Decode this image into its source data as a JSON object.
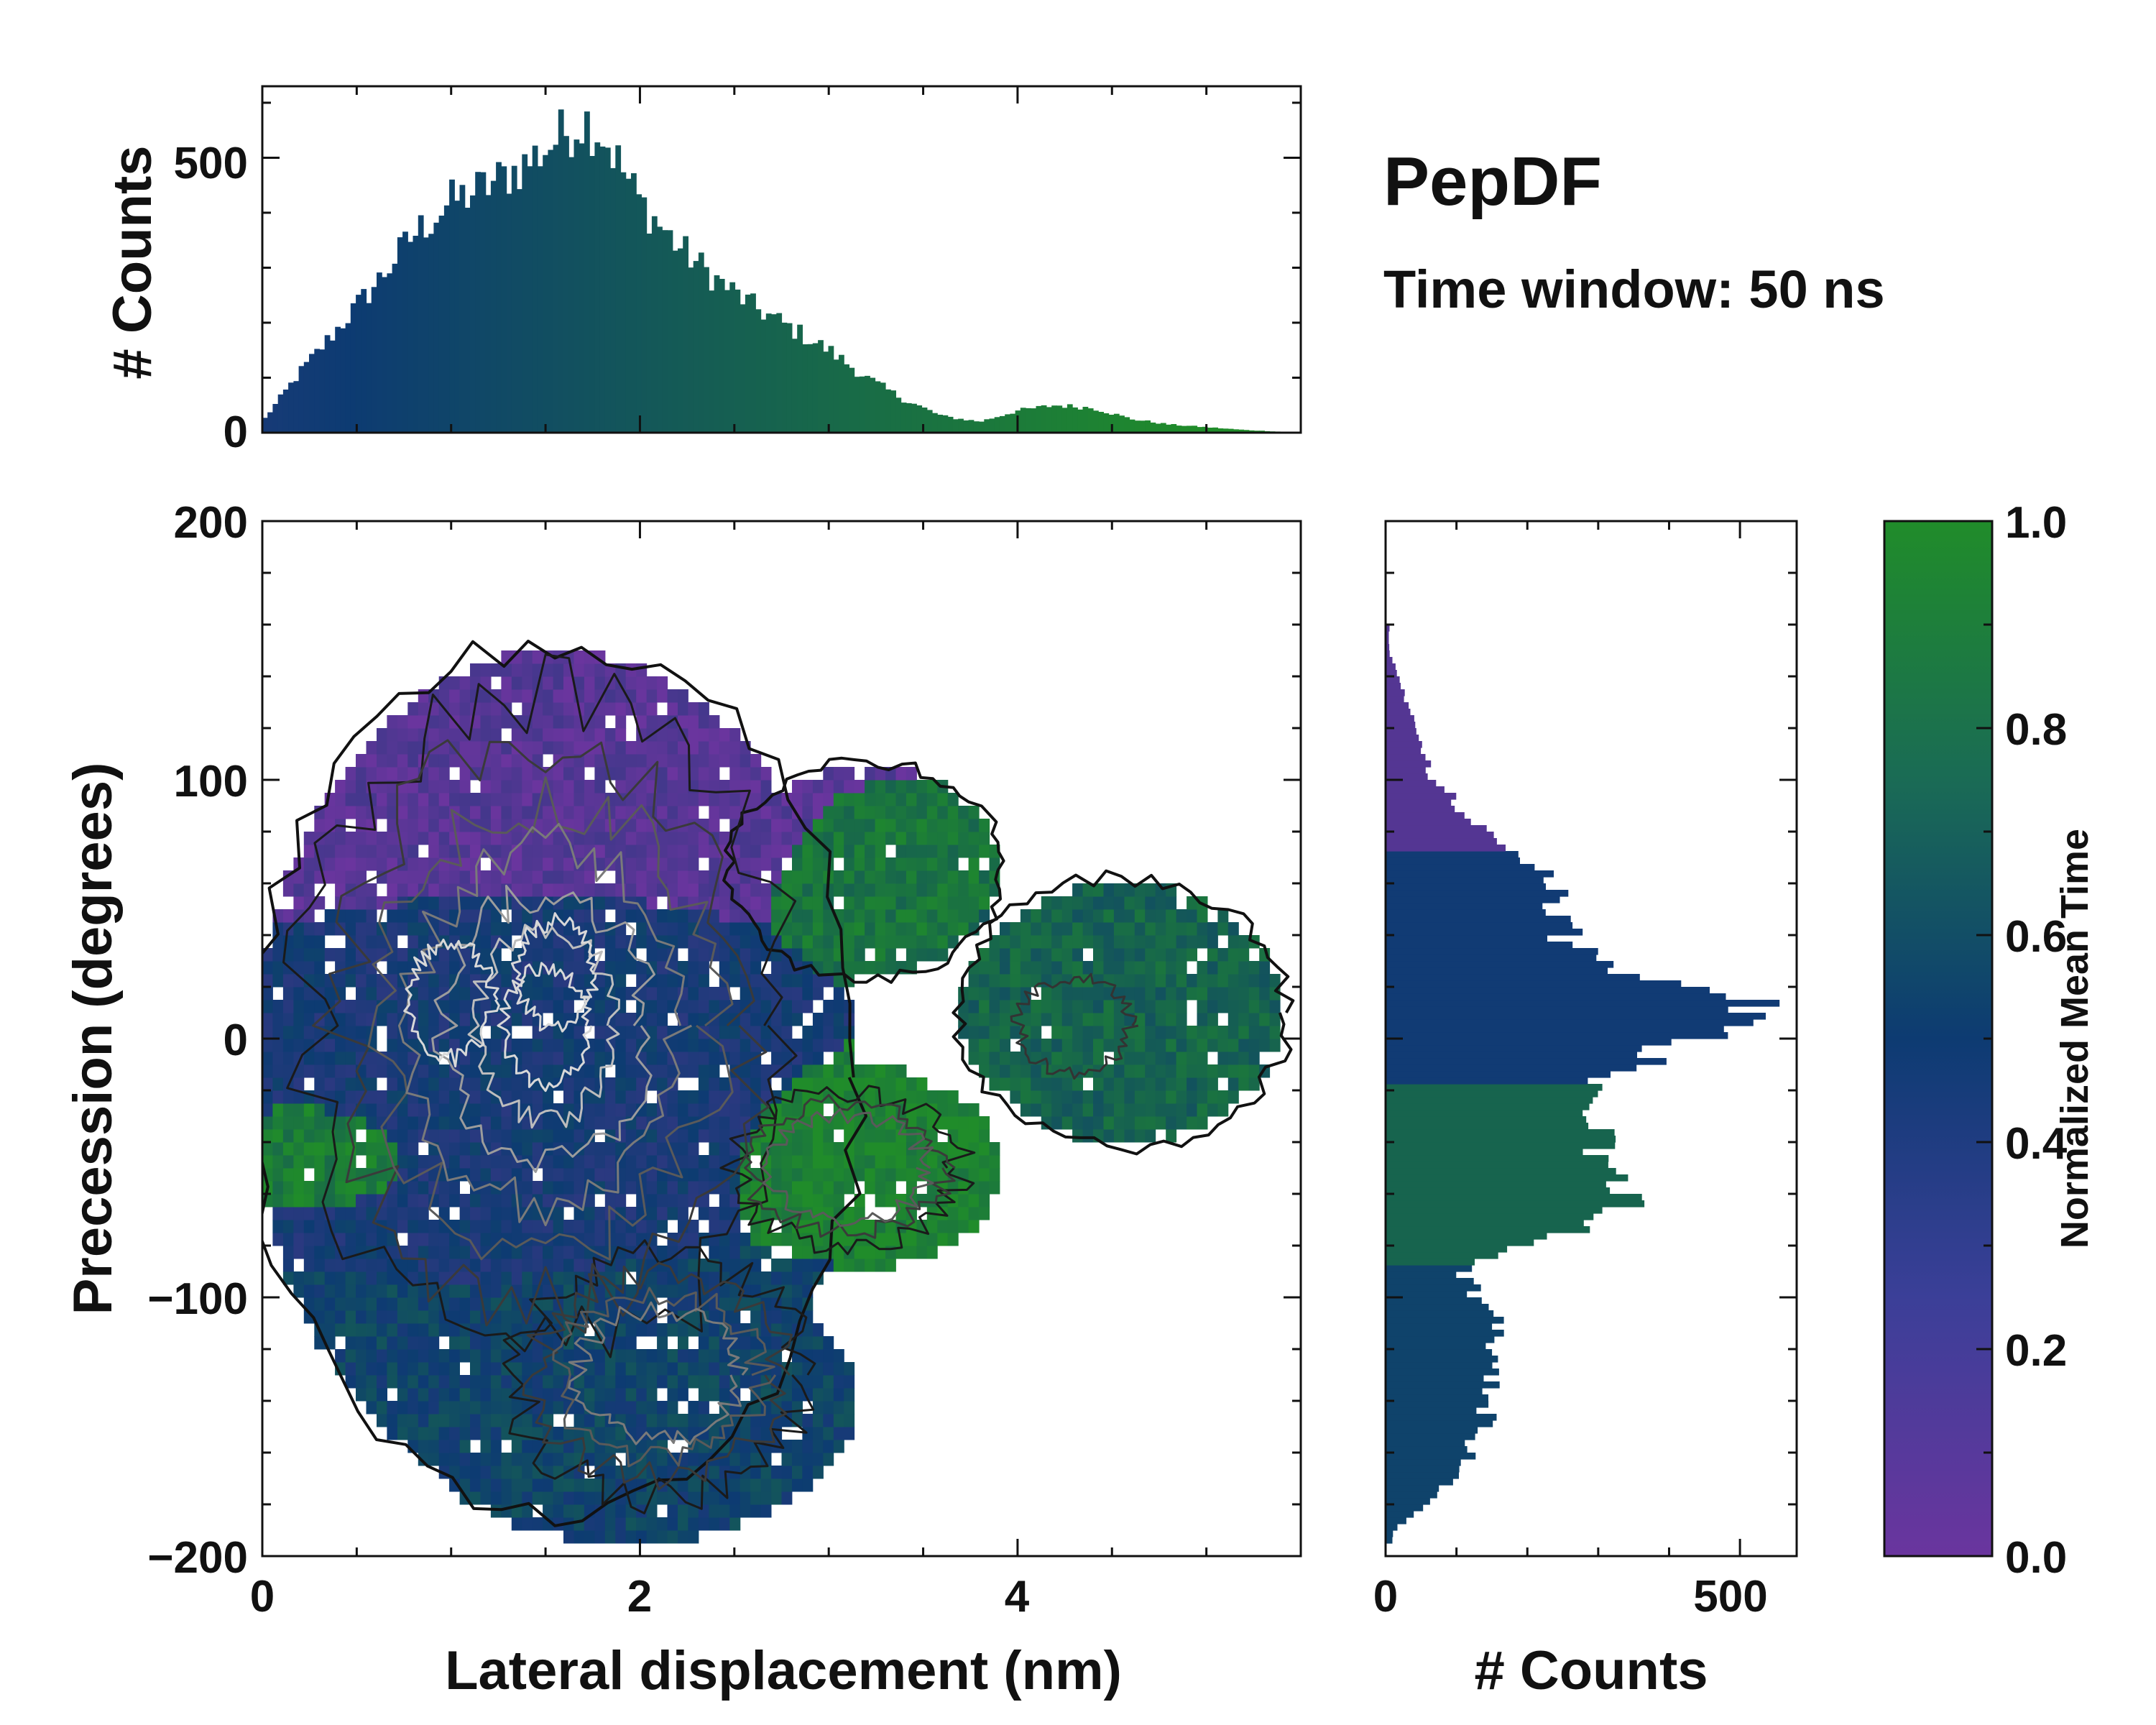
{
  "colors": {
    "low": "#6a359e",
    "mid": "#0d3b72",
    "high": "#208c2a",
    "contour_dark": "#111111",
    "contour_light": "#d8d8d8"
  },
  "chart_data": [
    {
      "id": "top_histogram",
      "type": "bar",
      "title": "",
      "xlabel": "",
      "ylabel": "# Counts",
      "xlim": [
        0,
        5.5
      ],
      "ylim": [
        0,
        630
      ],
      "yticks": [
        0,
        500
      ],
      "bin_width": 0.0275,
      "series": [
        {
          "name": "lateral displacement counts",
          "x": [
            0.0,
            0.2,
            0.4,
            0.6,
            0.8,
            1.0,
            1.2,
            1.4,
            1.6,
            1.7,
            1.8,
            2.0,
            2.2,
            2.4,
            2.6,
            2.8,
            3.0,
            3.2,
            3.4,
            3.6,
            3.8,
            4.0,
            4.2,
            4.4,
            4.6,
            4.8,
            5.0,
            5.2,
            5.5
          ],
          "y": [
            20,
            110,
            190,
            270,
            360,
            420,
            450,
            490,
            545,
            570,
            545,
            420,
            340,
            280,
            230,
            190,
            150,
            100,
            60,
            30,
            20,
            40,
            50,
            45,
            25,
            15,
            10,
            5,
            0
          ]
        }
      ]
    },
    {
      "id": "heatmap",
      "type": "heatmap",
      "title": "",
      "xlabel": "Lateral displacement (nm)",
      "ylabel": "Precession (degrees)",
      "xlim": [
        0,
        5.5
      ],
      "ylim": [
        -200,
        200
      ],
      "xticks": [
        "0",
        "2",
        "4"
      ],
      "yticks": [
        "200",
        "100",
        "0",
        "−100",
        "−200"
      ],
      "color_variable": "Normalized Mean Time",
      "regions": [
        {
          "name": "upper purple lobe",
          "x_range": [
            0.1,
            3.3
          ],
          "y_range": [
            60,
            160
          ],
          "mean_time": 0.1
        },
        {
          "name": "upper-right green lobe",
          "x_range": [
            2.8,
            3.8
          ],
          "y_range": [
            40,
            100
          ],
          "mean_time": 0.85
        },
        {
          "name": "central blue core",
          "x_range": [
            0.5,
            2.5
          ],
          "y_range": [
            -90,
            50
          ],
          "mean_time": 0.45
        },
        {
          "name": "right teal lobe",
          "x_range": [
            3.8,
            5.4
          ],
          "y_range": [
            -40,
            60
          ],
          "mean_time": 0.75
        },
        {
          "name": "lower-middle green band",
          "x_range": [
            2.6,
            3.9
          ],
          "y_range": [
            -80,
            -20
          ],
          "mean_time": 0.95
        },
        {
          "name": "left green band",
          "x_range": [
            0.0,
            0.8
          ],
          "y_range": [
            -60,
            -30
          ],
          "mean_time": 0.9
        },
        {
          "name": "lower blue-teal lobe",
          "x_range": [
            0.6,
            3.3
          ],
          "y_range": [
            -190,
            -90
          ],
          "mean_time": 0.55
        }
      ]
    },
    {
      "id": "right_histogram",
      "type": "bar",
      "orientation": "horizontal",
      "title": "",
      "xlabel": "# Counts",
      "ylabel": "",
      "xlim": [
        0,
        580
      ],
      "xticks": [
        "0",
        "500"
      ],
      "ylim": [
        -200,
        200
      ],
      "series": [
        {
          "name": "precession counts",
          "y": [
            150,
            130,
            110,
            100,
            80,
            60,
            40,
            30,
            20,
            15,
            10,
            0,
            -10,
            -20,
            -30,
            -40,
            -50,
            -60,
            -70,
            -80,
            -90,
            -100,
            -110,
            -120,
            -140,
            -160,
            -180,
            -190
          ],
          "x": [
            5,
            30,
            50,
            70,
            140,
            230,
            250,
            300,
            420,
            510,
            540,
            440,
            350,
            300,
            310,
            300,
            300,
            340,
            320,
            170,
            110,
            130,
            160,
            140,
            150,
            120,
            60,
            10
          ]
        }
      ]
    },
    {
      "id": "colorbar",
      "type": "colorbar",
      "title": "Normalized Mean Time",
      "range": [
        0.0,
        1.0
      ],
      "ticks": [
        "0.0",
        "0.2",
        "0.4",
        "0.6",
        "0.8",
        "1.0"
      ]
    }
  ],
  "annotations": {
    "title": "PepDF",
    "subtitle": "Time window: 50 ns"
  }
}
